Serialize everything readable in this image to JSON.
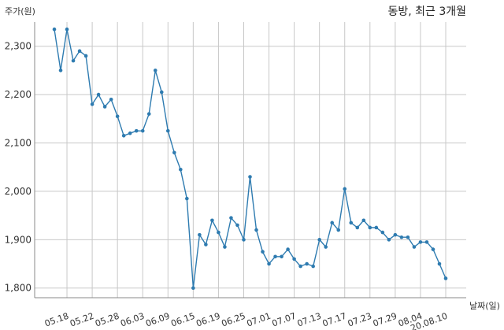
{
  "chart_data": {
    "type": "line",
    "title": "동방, 최근 3개월",
    "ylabel": "주가(원)",
    "xlabel": "날짜(일)",
    "ylim": [
      1780,
      2350
    ],
    "yticks": [
      1800,
      1900,
      2000,
      2100,
      2200,
      2300
    ],
    "ytick_labels": [
      "1,800",
      "1,900",
      "2,000",
      "2,100",
      "2,200",
      "2,300"
    ],
    "xtick_labels": [
      "05.18",
      "05.22",
      "05.28",
      "06.03",
      "06.09",
      "06.15",
      "06.19",
      "06.25",
      "07.01",
      "07.07",
      "07.13",
      "07.17",
      "07.23",
      "07.29",
      "08.04",
      "20.08.10"
    ],
    "xtick_index": [
      2,
      6,
      10,
      14,
      18,
      22,
      26,
      30,
      34,
      38,
      42,
      46,
      50,
      54,
      58,
      62
    ],
    "grid": true,
    "color": "#2e7bb0",
    "series": [
      {
        "values": [
          2335,
          2250,
          2335,
          2270,
          2290,
          2280,
          2180,
          2200,
          2175,
          2190,
          2155,
          2115,
          2120,
          2125,
          2125,
          2160,
          2250,
          2205,
          2125,
          2080,
          2045,
          1985,
          1800,
          1910,
          1890,
          1940,
          1915,
          1885,
          1945,
          1930,
          1900,
          2030,
          1920,
          1875,
          1850,
          1865,
          1865,
          1880,
          1860,
          1845,
          1850,
          1845,
          1900,
          1885,
          1935,
          1920,
          2005,
          1935,
          1925,
          1940,
          1925,
          1925,
          1915,
          1900,
          1910,
          1905,
          1905,
          1885,
          1895,
          1895,
          1880,
          1850,
          1820
        ]
      }
    ]
  }
}
